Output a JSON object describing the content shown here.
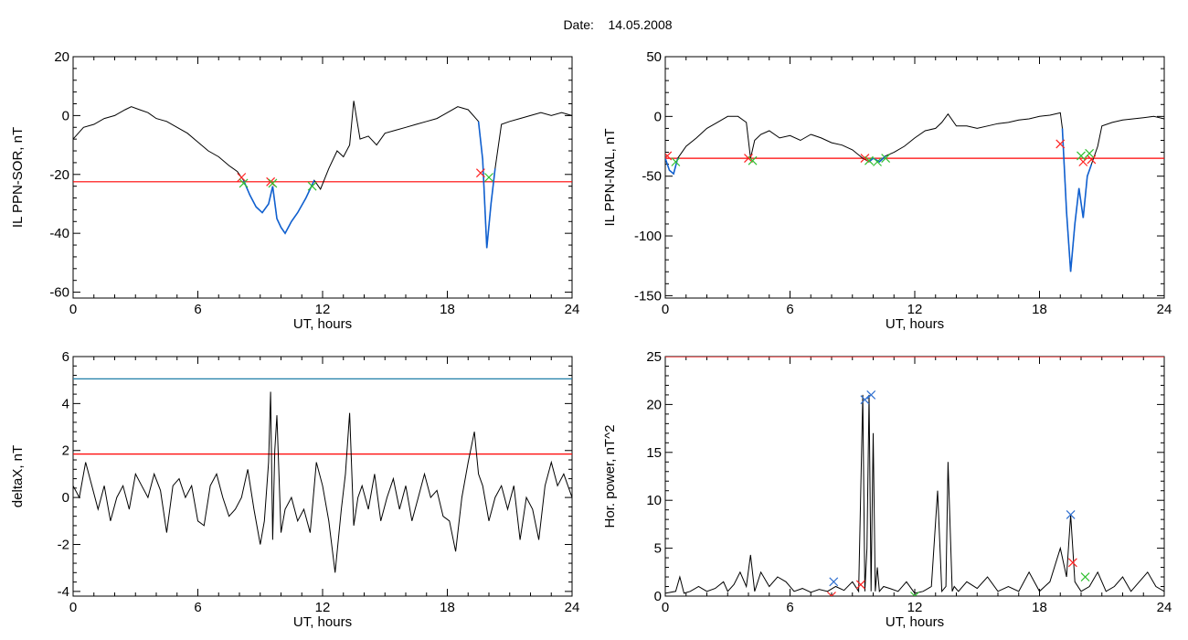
{
  "header": {
    "date_label": "Date:",
    "date_value": "14.05.2008"
  },
  "colors": {
    "trace": "#000000",
    "threshold": "#ff0000",
    "upper_threshold": "#1f7fa8",
    "segment": "#1060d0",
    "mark_red": "#ff2020",
    "mark_green": "#30c030",
    "mark_blue": "#3070d0"
  },
  "chart_data": [
    {
      "type": "line",
      "ylabel": "IL PPN-SOR, nT",
      "xlabel": "UT, hours",
      "xlim": [
        0,
        24
      ],
      "xticks": [
        0,
        6,
        12,
        18,
        24
      ],
      "ylim": [
        -62,
        20
      ],
      "yticks": [
        20,
        0,
        -20,
        -40,
        -60
      ],
      "series": [
        {
          "x": [
            0,
            0.5,
            1,
            1.5,
            2,
            2.5,
            2.8,
            3.2,
            3.6,
            4,
            4.5,
            5,
            5.5,
            6,
            6.5,
            7,
            7.5,
            7.9,
            8.2,
            8.5,
            8.8,
            9.1,
            9.4,
            9.6,
            9.8,
            10,
            10.2,
            10.5,
            10.8,
            11.2,
            11.6,
            11.9,
            12.3,
            12.7,
            13,
            13.3,
            13.5,
            13.8,
            14.2,
            14.6,
            15,
            15.5,
            16,
            16.5,
            17,
            17.5,
            18,
            18.5,
            19,
            19.5,
            19.7,
            19.9,
            20.1,
            20.3,
            20.6,
            21,
            21.5,
            22,
            22.5,
            23,
            23.5,
            24
          ],
          "y": [
            -8,
            -4,
            -3,
            -1,
            0,
            2,
            3,
            2,
            1,
            -1,
            -2,
            -4,
            -6,
            -9,
            -12,
            -14,
            -17,
            -19,
            -22,
            -27,
            -31,
            -33,
            -30,
            -24,
            -35,
            -38,
            -40,
            -36,
            -33,
            -28,
            -22,
            -25,
            -18,
            -12,
            -14,
            -10,
            5,
            -8,
            -7,
            -10,
            -6,
            -5,
            -4,
            -3,
            -2,
            -1,
            1,
            3,
            2,
            -2,
            -15,
            -45,
            -30,
            -18,
            -3,
            -2,
            -1,
            0,
            1,
            0,
            1,
            0
          ]
        }
      ],
      "threshold": -22.5,
      "markers_red": [
        [
          8.1,
          -21
        ],
        [
          9.5,
          -22.5
        ],
        [
          19.6,
          -19.5
        ]
      ],
      "markers_green": [
        [
          8.2,
          -23
        ],
        [
          9.6,
          -23
        ],
        [
          11.5,
          -24
        ],
        [
          20.0,
          -21
        ]
      ],
      "highlight_segments": [
        [
          8.0,
          11.8
        ],
        [
          19.5,
          20.3
        ]
      ]
    },
    {
      "type": "line",
      "ylabel": "IL PPN-NAL, nT",
      "xlabel": "UT, hours",
      "xlim": [
        0,
        24
      ],
      "xticks": [
        0,
        6,
        12,
        18,
        24
      ],
      "ylim": [
        -152,
        50
      ],
      "yticks": [
        50,
        0,
        -50,
        -100,
        -150
      ],
      "series": [
        {
          "x": [
            0,
            0.2,
            0.4,
            0.6,
            0.8,
            1,
            1.5,
            2,
            2.5,
            3,
            3.5,
            3.9,
            4.1,
            4.3,
            4.6,
            5,
            5.5,
            6,
            6.5,
            7,
            7.5,
            8,
            8.5,
            9,
            9.5,
            9.8,
            10,
            10.3,
            10.6,
            11,
            11.5,
            12,
            12.5,
            13,
            13.3,
            13.6,
            14,
            14.5,
            15,
            15.5,
            16,
            16.5,
            17,
            17.5,
            18,
            18.5,
            19,
            19.1,
            19.3,
            19.5,
            19.7,
            19.9,
            20.1,
            20.3,
            20.5,
            20.8,
            21,
            21.5,
            22,
            22.5,
            23,
            23.5,
            24
          ],
          "y": [
            -35,
            -45,
            -48,
            -35,
            -30,
            -25,
            -18,
            -10,
            -5,
            0,
            0,
            -5,
            -35,
            -20,
            -15,
            -12,
            -18,
            -16,
            -20,
            -15,
            -18,
            -22,
            -24,
            -28,
            -35,
            -38,
            -35,
            -38,
            -33,
            -30,
            -25,
            -18,
            -12,
            -10,
            -5,
            2,
            -8,
            -8,
            -10,
            -8,
            -6,
            -5,
            -3,
            -2,
            0,
            1,
            3,
            -10,
            -80,
            -130,
            -90,
            -60,
            -85,
            -50,
            -40,
            -25,
            -8,
            -5,
            -3,
            -2,
            -1,
            0,
            -2
          ]
        }
      ],
      "threshold": -35,
      "markers_red": [
        [
          0.1,
          -33
        ],
        [
          4.0,
          -35
        ],
        [
          9.6,
          -35
        ],
        [
          19.0,
          -23
        ],
        [
          20.1,
          -38
        ],
        [
          20.5,
          -36
        ]
      ],
      "markers_green": [
        [
          0.5,
          -38
        ],
        [
          4.2,
          -37
        ],
        [
          9.8,
          -37
        ],
        [
          10.2,
          -38
        ],
        [
          10.6,
          -35
        ],
        [
          20.0,
          -33
        ],
        [
          20.4,
          -31
        ]
      ],
      "highlight_segments": [
        [
          0.0,
          0.7
        ],
        [
          9.7,
          10.6
        ],
        [
          19.1,
          20.6
        ]
      ]
    },
    {
      "type": "line",
      "ylabel": "deltaX, nT",
      "xlabel": "UT, hours",
      "xlim": [
        0,
        24
      ],
      "xticks": [
        0,
        6,
        12,
        18,
        24
      ],
      "ylim": [
        -4.2,
        6
      ],
      "yticks": [
        6,
        4,
        2,
        0,
        -2,
        -4
      ],
      "series": [
        {
          "x": [
            0,
            0.3,
            0.6,
            0.9,
            1.2,
            1.5,
            1.8,
            2.1,
            2.4,
            2.7,
            3,
            3.3,
            3.6,
            3.9,
            4.2,
            4.5,
            4.8,
            5.1,
            5.4,
            5.7,
            6,
            6.3,
            6.6,
            6.9,
            7.2,
            7.5,
            7.8,
            8.1,
            8.4,
            8.7,
            9,
            9.2,
            9.4,
            9.5,
            9.6,
            9.7,
            9.8,
            10.0,
            10.2,
            10.5,
            10.8,
            11.1,
            11.4,
            11.7,
            12,
            12.3,
            12.6,
            12.9,
            13.1,
            13.3,
            13.5,
            13.7,
            13.9,
            14.2,
            14.5,
            14.8,
            15.1,
            15.4,
            15.7,
            16,
            16.3,
            16.6,
            16.9,
            17.2,
            17.5,
            17.8,
            18.1,
            18.4,
            18.7,
            19,
            19.3,
            19.5,
            19.7,
            20,
            20.3,
            20.6,
            20.9,
            21.2,
            21.5,
            21.8,
            22.1,
            22.4,
            22.7,
            23,
            23.3,
            23.6,
            24
          ],
          "y": [
            0.5,
            0,
            1.5,
            0.5,
            -0.5,
            0.5,
            -1,
            0,
            0.5,
            -0.5,
            1,
            0.5,
            0,
            1,
            0.3,
            -1.5,
            0.5,
            0.8,
            0,
            0.5,
            -1,
            -1.2,
            0.5,
            1,
            0,
            -0.8,
            -0.5,
            0,
            1.2,
            -0.5,
            -2,
            -1,
            1.5,
            4.5,
            -1.8,
            2,
            3.5,
            -1.5,
            -0.5,
            0,
            -1,
            -0.5,
            -1.5,
            1.5,
            0.5,
            -1,
            -3.2,
            -0.5,
            1,
            3.6,
            -1.2,
            0,
            0.5,
            -0.5,
            1,
            -1,
            0,
            0.8,
            -0.5,
            0.5,
            -1,
            0,
            1,
            0,
            0.3,
            -0.8,
            -1,
            -2.3,
            0,
            1.5,
            2.8,
            1,
            0.5,
            -1,
            0,
            0.5,
            -0.5,
            0.5,
            -1.8,
            0,
            -0.5,
            -1.8,
            0.5,
            1.5,
            0.5,
            1,
            0
          ]
        }
      ],
      "threshold": 1.85,
      "upper_threshold": 5.05
    },
    {
      "type": "line",
      "ylabel": "Hor. power, nT^2",
      "xlabel": "UT, hours",
      "xlim": [
        0,
        24
      ],
      "xticks": [
        0,
        6,
        12,
        18,
        24
      ],
      "ylim": [
        0,
        25
      ],
      "yticks": [
        25,
        20,
        15,
        10,
        5,
        0
      ],
      "series": [
        {
          "x": [
            0,
            0.5,
            0.7,
            0.9,
            1.2,
            1.6,
            2,
            2.4,
            2.8,
            3,
            3.3,
            3.6,
            3.9,
            4.1,
            4.3,
            4.6,
            5,
            5.4,
            5.8,
            6.2,
            6.6,
            7,
            7.4,
            7.8,
            8.2,
            8.6,
            9,
            9.3,
            9.5,
            9.6,
            9.7,
            9.8,
            9.9,
            10.0,
            10.1,
            10.2,
            10.3,
            10.5,
            10.8,
            11.2,
            11.6,
            12,
            12.4,
            12.8,
            13.1,
            13.3,
            13.5,
            13.6,
            13.8,
            13.9,
            14.1,
            14.5,
            15,
            15.5,
            16,
            16.5,
            17,
            17.5,
            18,
            18.5,
            19,
            19.3,
            19.5,
            19.7,
            20,
            20.4,
            20.8,
            21.2,
            21.6,
            22,
            22.4,
            22.8,
            23.2,
            23.6,
            24
          ],
          "y": [
            0.3,
            0.5,
            2,
            0.3,
            0.5,
            1,
            0.5,
            0.8,
            1.5,
            0.5,
            1.2,
            2.5,
            1,
            4.3,
            0.5,
            2.5,
            1,
            2,
            1.5,
            0.5,
            0.8,
            0.4,
            0.7,
            0.5,
            1,
            0.6,
            1.5,
            0.5,
            21,
            0.5,
            5,
            21,
            0.5,
            17,
            0.5,
            3,
            0.5,
            1,
            0.8,
            0.5,
            1.5,
            0.3,
            0.5,
            1,
            11,
            0.5,
            1,
            14,
            0.5,
            1,
            0.5,
            1.5,
            0.8,
            2,
            0.5,
            1,
            0.5,
            2.5,
            0.5,
            1.5,
            5,
            2,
            8.5,
            1.5,
            0.5,
            1,
            2.5,
            0.5,
            1,
            2,
            0.5,
            1.5,
            2.5,
            1,
            0.5
          ]
        }
      ],
      "threshold": 25,
      "markers_blue": [
        [
          8.1,
          1.5
        ],
        [
          9.6,
          20.5
        ],
        [
          9.9,
          21
        ],
        [
          19.5,
          8.5
        ]
      ],
      "markers_red": [
        [
          8.0,
          0
        ],
        [
          9.4,
          1.2
        ],
        [
          19.6,
          3.5
        ]
      ],
      "markers_green": [
        [
          12.0,
          0
        ],
        [
          20.2,
          2
        ]
      ]
    }
  ]
}
